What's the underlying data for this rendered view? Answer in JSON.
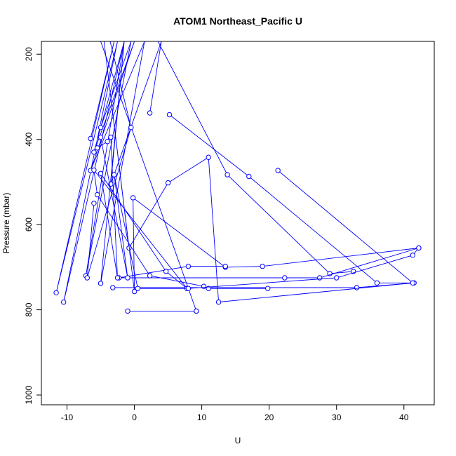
{
  "chart_data": {
    "type": "line",
    "title": "ATOM1 Northeast_Pacific U",
    "xlabel": "U",
    "ylabel": "Pressure (mbar)",
    "xlim": [
      -13.8,
      44.5
    ],
    "ylim": [
      1023,
      170
    ],
    "y_reversed": true,
    "x_ticks": [
      -10,
      0,
      10,
      20,
      30,
      40
    ],
    "x_tick_labels": [
      "-10",
      "0",
      "10",
      "20",
      "30",
      "40"
    ],
    "y_ticks": [
      200,
      400,
      600,
      800,
      1000
    ],
    "y_tick_labels": [
      "200",
      "400",
      "600",
      "800",
      "1000"
    ],
    "grid": false,
    "legend": "none",
    "colors": {
      "series": "#0000ff",
      "axis": "#000000"
    },
    "series": [
      {
        "x": [
          -6.5,
          -3.0,
          -11.6,
          -2.5,
          -10.5,
          -1.5,
          -5.0,
          -0.5,
          -7.2,
          -1.5,
          -6.0,
          0.0,
          -6.5,
          1.5,
          -5.0,
          -1.5,
          -3.5,
          4.0,
          2.3
        ],
        "y": [
          398,
          170,
          760,
          170,
          782,
          170,
          372,
          170,
          720,
          170,
          430,
          170,
          473,
          170,
          738,
          170,
          505,
          170,
          338
        ]
      },
      {
        "x": [
          5.2,
          17.0,
          36.0,
          41.5,
          33.0,
          -3.2
        ],
        "y": [
          342,
          487,
          737,
          737,
          748,
          748
        ]
      },
      {
        "x": [
          3.5,
          13.8,
          29.0,
          32.5
        ],
        "y": [
          170,
          483,
          715,
          710
        ]
      },
      {
        "x": [
          -6.0,
          -7.0,
          -0.5,
          -10.5,
          -5.0,
          9.2,
          -1.0,
          9.2
        ],
        "y": [
          550,
          725,
          372,
          -280,
          170,
          803,
          803,
          803
        ]
      },
      {
        "x": [
          21.3,
          41.3,
          12.5,
          11.0,
          5.0,
          -0.8,
          -4.5,
          0.0,
          -0.2,
          13.5,
          19.0,
          42.2,
          27.5,
          22.3,
          -2.3,
          8.0,
          13.5
        ],
        "y": [
          473,
          737,
          782,
          442,
          502,
          655,
          170,
          757,
          537,
          700,
          698,
          655,
          725,
          725,
          725,
          698,
          698
        ]
      },
      {
        "x": [
          -5.5,
          -4.0,
          -3.5,
          -2.5,
          -5.0,
          4.7,
          7.8,
          -6.0,
          -5.5,
          2.3,
          10.3,
          11.0,
          19.8
        ],
        "y": [
          420,
          405,
          395,
          725,
          480,
          710,
          750,
          472,
          530,
          720,
          745,
          750,
          750
        ]
      },
      {
        "x": [
          -5.0,
          -1.0,
          -3.0,
          0.5,
          8.0,
          30.0,
          41.3,
          42.2
        ],
        "y": [
          395,
          725,
          483,
          750,
          750,
          725,
          672,
          655
        ]
      }
    ]
  }
}
